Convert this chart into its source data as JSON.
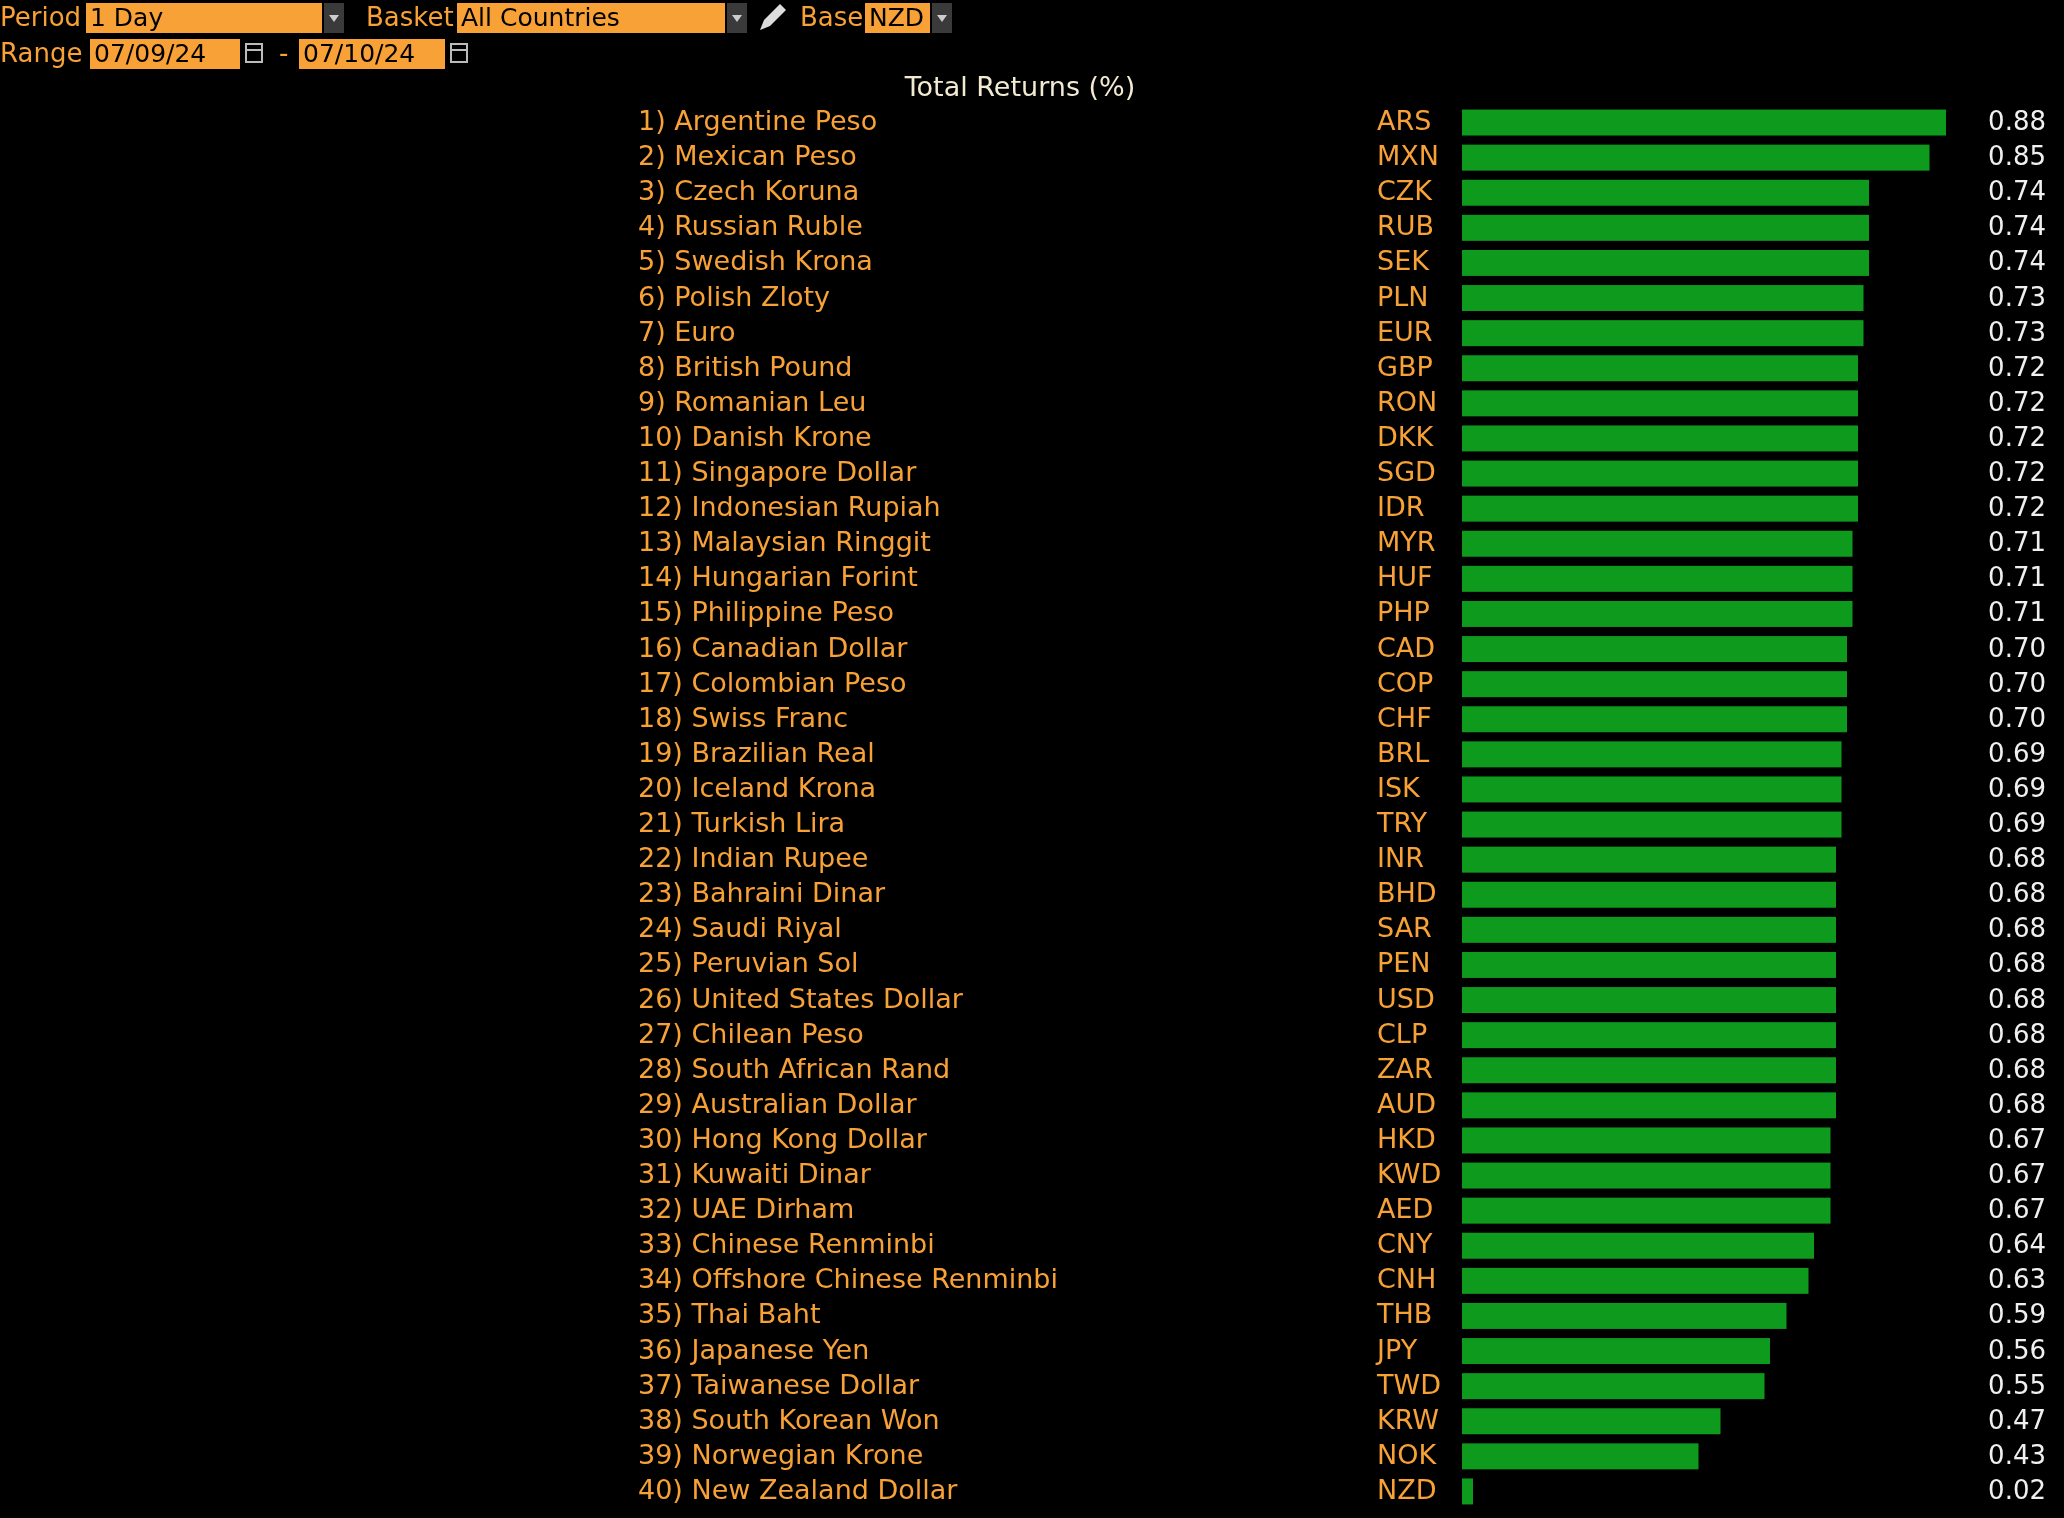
{
  "chart_data": {
    "type": "bar",
    "orientation": "horizontal",
    "title": "Total Returns (%)",
    "categories": [
      "1) Argentine Peso",
      "2) Mexican Peso",
      "3) Czech Koruna",
      "4) Russian Ruble",
      "5) Swedish Krona",
      "6) Polish Zloty",
      "7) Euro",
      "8) British Pound",
      "9) Romanian Leu",
      "10) Danish Krone",
      "11) Singapore Dollar",
      "12) Indonesian Rupiah",
      "13) Malaysian Ringgit",
      "14) Hungarian Forint",
      "15) Philippine Peso",
      "16) Canadian Dollar",
      "17) Colombian Peso",
      "18) Swiss Franc",
      "19) Brazilian Real",
      "20) Iceland Krona",
      "21) Turkish Lira",
      "22) Indian Rupee",
      "23) Bahraini Dinar",
      "24) Saudi Riyal",
      "25) Peruvian Sol",
      "26) United States Dollar",
      "27) Chilean Peso",
      "28) South African Rand",
      "29) Australian Dollar",
      "30) Hong Kong Dollar",
      "31) Kuwaiti Dinar",
      "32) UAE Dirham",
      "33) Chinese Renminbi",
      "34) Offshore Chinese Renminbi",
      "35) Thai Baht",
      "36) Japanese Yen",
      "37) Taiwanese Dollar",
      "38) South Korean Won",
      "39) Norwegian Krone",
      "40) New Zealand Dollar"
    ],
    "y2_categories": [
      "ARS",
      "MXN",
      "CZK",
      "RUB",
      "SEK",
      "PLN",
      "EUR",
      "GBP",
      "RON",
      "DKK",
      "SGD",
      "IDR",
      "MYR",
      "HUF",
      "PHP",
      "CAD",
      "COP",
      "CHF",
      "BRL",
      "ISK",
      "TRY",
      "INR",
      "BHD",
      "SAR",
      "PEN",
      "USD",
      "CLP",
      "ZAR",
      "AUD",
      "HKD",
      "KWD",
      "AED",
      "CNY",
      "CNH",
      "THB",
      "JPY",
      "TWD",
      "KRW",
      "NOK",
      "NZD"
    ],
    "values": [
      0.88,
      0.85,
      0.74,
      0.74,
      0.74,
      0.73,
      0.73,
      0.72,
      0.72,
      0.72,
      0.72,
      0.72,
      0.71,
      0.71,
      0.71,
      0.7,
      0.7,
      0.7,
      0.69,
      0.69,
      0.69,
      0.68,
      0.68,
      0.68,
      0.68,
      0.68,
      0.68,
      0.68,
      0.68,
      0.67,
      0.67,
      0.67,
      0.64,
      0.63,
      0.59,
      0.56,
      0.55,
      0.47,
      0.43,
      0.02
    ],
    "value_labels": [
      "0.88",
      "0.85",
      "0.74",
      "0.74",
      "0.74",
      "0.73",
      "0.73",
      "0.72",
      "0.72",
      "0.72",
      "0.72",
      "0.72",
      "0.71",
      "0.71",
      "0.71",
      "0.70",
      "0.70",
      "0.70",
      "0.69",
      "0.69",
      "0.69",
      "0.68",
      "0.68",
      "0.68",
      "0.68",
      "0.68",
      "0.68",
      "0.68",
      "0.68",
      "0.67",
      "0.67",
      "0.67",
      "0.64",
      "0.63",
      "0.59",
      "0.56",
      "0.55",
      "0.47",
      "0.43",
      "0.02"
    ],
    "color": "#0e9a1c",
    "xlim": [
      0,
      0.88
    ],
    "annotations": [
      "Period",
      "1 Day",
      "Basket",
      "All Countries",
      "Base",
      "NZD",
      "Range",
      "07/09/24",
      "-",
      "07/10/24"
    ]
  }
}
